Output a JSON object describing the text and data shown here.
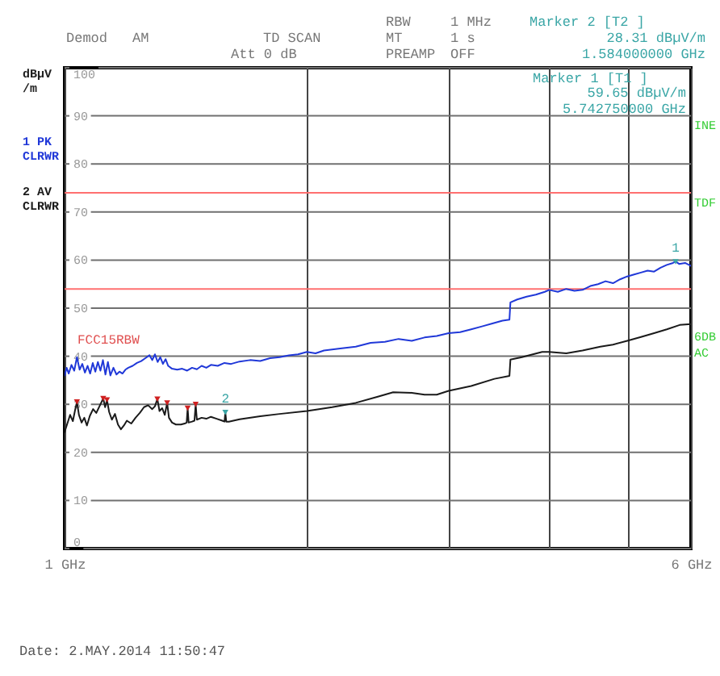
{
  "chart_data": {
    "type": "line",
    "ylabel": "dBµV\n/m",
    "log": "x",
    "xlim": [
      1,
      6
    ],
    "xticks": [
      {
        "value": 1,
        "label": "1 GHz"
      },
      {
        "value": 2,
        "label": null
      },
      {
        "value": 3,
        "label": null
      },
      {
        "value": 4,
        "label": null
      },
      {
        "value": 5,
        "label": null
      },
      {
        "value": 6,
        "label": "6 GHz"
      }
    ],
    "ylim": [
      0,
      100
    ],
    "yticks": [
      0,
      10,
      20,
      30,
      40,
      50,
      60,
      70,
      80,
      90,
      100
    ],
    "grid": true,
    "legend": "left",
    "ref_lines": [
      {
        "axis": "y",
        "value": 74,
        "color": "#ff7070"
      },
      {
        "axis": "y",
        "value": 54,
        "color": "#ff7070"
      }
    ],
    "series": [
      {
        "name": "1 PK\nCLRWR",
        "color": "#2038d8",
        "x": [
          1.0,
          1.006,
          1.012,
          1.02,
          1.028,
          1.036,
          1.044,
          1.052,
          1.06,
          1.068,
          1.076,
          1.084,
          1.092,
          1.1,
          1.108,
          1.116,
          1.124,
          1.132,
          1.14,
          1.15,
          1.16,
          1.17,
          1.18,
          1.19,
          1.2,
          1.215,
          1.23,
          1.245,
          1.26,
          1.275,
          1.285,
          1.295,
          1.305,
          1.315,
          1.325,
          1.335,
          1.345,
          1.36,
          1.38,
          1.4,
          1.42,
          1.44,
          1.46,
          1.48,
          1.5,
          1.52,
          1.55,
          1.58,
          1.61,
          1.65,
          1.7,
          1.75,
          1.8,
          1.85,
          1.9,
          1.95,
          2.0,
          2.05,
          2.1,
          2.2,
          2.3,
          2.4,
          2.5,
          2.6,
          2.7,
          2.8,
          2.9,
          3.0,
          3.1,
          3.2,
          3.3,
          3.4,
          3.5,
          3.57,
          3.58,
          3.65,
          3.75,
          3.85,
          3.95,
          4.0,
          4.1,
          4.2,
          4.3,
          4.4,
          4.5,
          4.6,
          4.7,
          4.8,
          4.9,
          5.0,
          5.1,
          5.2,
          5.3,
          5.4,
          5.5,
          5.6,
          5.7,
          5.74275,
          5.8,
          5.9,
          6.0
        ],
        "values": [
          36.0,
          37.6,
          36.4,
          38.2,
          37.0,
          39.8,
          37.2,
          38.4,
          36.6,
          38.0,
          36.4,
          38.6,
          36.8,
          38.8,
          37.0,
          39.2,
          36.2,
          38.8,
          36.0,
          37.6,
          36.2,
          36.8,
          36.4,
          37.2,
          37.6,
          38.0,
          38.6,
          39.0,
          39.6,
          40.2,
          39.2,
          40.4,
          38.8,
          39.8,
          38.4,
          39.4,
          38.0,
          37.4,
          37.2,
          37.4,
          37.0,
          37.6,
          37.3,
          38.0,
          37.6,
          38.2,
          38.0,
          38.6,
          38.4,
          38.9,
          39.2,
          39.0,
          39.6,
          39.8,
          40.2,
          40.4,
          40.9,
          40.6,
          41.2,
          41.6,
          42.0,
          42.8,
          43.0,
          43.6,
          43.2,
          43.9,
          44.2,
          44.8,
          45.0,
          45.6,
          46.2,
          46.8,
          47.4,
          47.6,
          51.2,
          51.8,
          52.4,
          52.8,
          53.4,
          53.8,
          53.4,
          54.0,
          53.6,
          53.8,
          54.6,
          55.0,
          55.6,
          55.2,
          56.0,
          56.6,
          57.0,
          57.4,
          57.8,
          57.6,
          58.4,
          59.0,
          59.4,
          59.7,
          59.2,
          59.4,
          58.8
        ]
      },
      {
        "name": "2 AV\nCLRWR",
        "color": "#1a1a1a",
        "x": [
          1.0,
          1.008,
          1.016,
          1.024,
          1.03,
          1.036,
          1.042,
          1.05,
          1.058,
          1.066,
          1.075,
          1.085,
          1.095,
          1.105,
          1.117,
          1.123,
          1.129,
          1.136,
          1.145,
          1.155,
          1.165,
          1.175,
          1.185,
          1.195,
          1.21,
          1.225,
          1.24,
          1.255,
          1.27,
          1.285,
          1.295,
          1.304,
          1.312,
          1.322,
          1.332,
          1.341,
          1.348,
          1.36,
          1.375,
          1.395,
          1.41,
          1.418,
          1.422,
          1.426,
          1.44,
          1.45,
          1.455,
          1.46,
          1.48,
          1.5,
          1.52,
          1.545,
          1.57,
          1.58,
          1.584,
          1.588,
          1.6,
          1.65,
          1.75,
          1.85,
          2.0,
          2.15,
          2.3,
          2.45,
          2.56,
          2.7,
          2.8,
          2.9,
          3.0,
          3.2,
          3.42,
          3.57,
          3.58,
          3.7,
          3.92,
          4.0,
          4.2,
          4.4,
          4.63,
          4.8,
          5.0,
          5.2,
          5.4,
          5.6,
          5.81,
          6.0
        ],
        "values": [
          24.2,
          26.0,
          27.8,
          26.5,
          28.6,
          30.5,
          27.8,
          26.2,
          27.2,
          25.6,
          27.6,
          29.0,
          28.2,
          29.6,
          31.2,
          29.4,
          30.9,
          28.4,
          26.8,
          28.0,
          25.8,
          24.8,
          25.6,
          26.6,
          26.0,
          27.2,
          28.2,
          29.4,
          29.8,
          29.0,
          29.6,
          31.1,
          28.6,
          29.2,
          27.8,
          30.3,
          27.2,
          26.2,
          25.8,
          25.8,
          26.0,
          26.2,
          29.2,
          26.2,
          26.4,
          26.6,
          30.0,
          26.8,
          27.2,
          27.0,
          27.4,
          27.0,
          26.6,
          26.4,
          28.3,
          26.4,
          26.4,
          26.9,
          27.5,
          28.0,
          28.6,
          29.4,
          30.3,
          31.6,
          32.5,
          32.4,
          32.0,
          32.0,
          32.8,
          33.8,
          35.3,
          35.9,
          39.3,
          39.8,
          40.9,
          40.9,
          40.6,
          41.2,
          42.0,
          42.4,
          43.2,
          44.0,
          44.8,
          45.6,
          46.5,
          46.7
        ]
      },
      {
        "type": "scatter",
        "marker": "triangle",
        "color": "#d02020",
        "x": [
          1.036,
          1.117,
          1.129,
          1.304,
          1.341,
          1.422,
          1.455
        ],
        "values": [
          30.5,
          31.2,
          30.9,
          31.1,
          30.3,
          29.2,
          30.0
        ]
      }
    ],
    "annotations": [
      "Demod",
      "AM",
      "TD SCAN",
      "Att 0 dB",
      "RBW",
      "1 MHz",
      "MT",
      "1 s",
      "PREAMP",
      "OFF",
      "Marker 2 [T2 ]",
      "28.31 dBµV/m",
      "1.584000000 GHz",
      "Marker 1 [T1 ]",
      "59.65 dBµV/m",
      "5.742750000 GHz",
      "FCC15RBW",
      "INE",
      "TDF",
      "6DB",
      "AC",
      "Date: 2.MAY.2014  11:50:47",
      {
        "text": "1",
        "x": 5.74275,
        "y": 59.65
      },
      {
        "text": "2",
        "x": 1.584,
        "y": 28.31
      }
    ]
  }
}
